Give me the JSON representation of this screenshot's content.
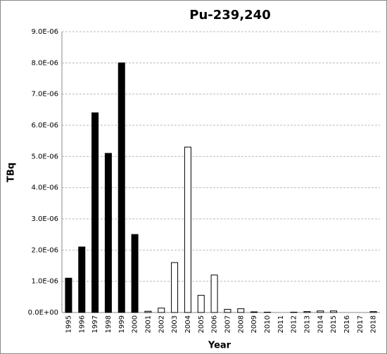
{
  "chart_data": {
    "type": "bar",
    "title": "Pu-239,240",
    "x_label": "Year",
    "y_label": "TBq",
    "categories": [
      "1995",
      "1996",
      "1997",
      "1998",
      "1999",
      "2000",
      "2001",
      "2002",
      "2003",
      "2004",
      "2005",
      "2006",
      "2007",
      "2008",
      "2009",
      "2010",
      "2011",
      "2012",
      "2013",
      "2014",
      "2015",
      "2016",
      "2017",
      "2018"
    ],
    "values": [
      1.1e-06,
      2.1e-06,
      6.4e-06,
      5.1e-06,
      8e-06,
      2.5e-06,
      4e-08,
      1.4e-07,
      1.6e-06,
      5.3e-06,
      5.5e-07,
      1.2e-06,
      1e-07,
      1.2e-07,
      2e-08,
      1e-08,
      0,
      1e-08,
      3e-08,
      5e-08,
      5e-08,
      0,
      0,
      3e-08
    ],
    "colors": [
      "#000000",
      "#000000",
      "#000000",
      "#000000",
      "#000000",
      "#000000",
      "#ffffff",
      "#ffffff",
      "#ffffff",
      "#ffffff",
      "#ffffff",
      "#ffffff",
      "#ffffff",
      "#ffffff",
      "#ffffff",
      "#ffffff",
      "#ffffff",
      "#ffffff",
      "#ffffff",
      "#ffffff",
      "#ffffff",
      "#ffffff",
      "#ffffff",
      "#ffffff"
    ],
    "ylim": [
      0,
      9e-06
    ],
    "yticks": [
      {
        "value": 0,
        "label": "0.0E+00"
      },
      {
        "value": 1e-06,
        "label": "1.0E-06"
      },
      {
        "value": 2e-06,
        "label": "2.0E-06"
      },
      {
        "value": 3e-06,
        "label": "3.0E-06"
      },
      {
        "value": 4e-06,
        "label": "4.0E-06"
      },
      {
        "value": 5e-06,
        "label": "5.0E-06"
      },
      {
        "value": 6e-06,
        "label": "6.0E-06"
      },
      {
        "value": 7e-06,
        "label": "7.0E-06"
      },
      {
        "value": 8e-06,
        "label": "8.0E-06"
      },
      {
        "value": 9e-06,
        "label": "9.0E-06"
      }
    ],
    "grid": true
  }
}
